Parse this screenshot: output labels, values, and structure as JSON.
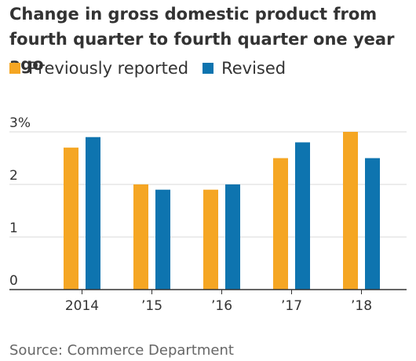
{
  "title": "Change in gross domestic product from fourth quarter to fourth quarter one year ago",
  "legend": [
    {
      "label": "Previously reported",
      "color": "#F5A623"
    },
    {
      "label": "Revised",
      "color": "#0E74AF"
    }
  ],
  "source": "Source: Commerce Department",
  "chart_data": {
    "type": "bar",
    "title": "Change in gross domestic product from fourth quarter to fourth quarter one year ago",
    "categories": [
      "2014",
      "’15",
      "’16",
      "’17",
      "’18"
    ],
    "series": [
      {
        "name": "Previously reported",
        "color": "#F5A623",
        "values": [
          2.7,
          2.0,
          1.9,
          2.5,
          3.0
        ]
      },
      {
        "name": "Revised",
        "color": "#0E74AF",
        "values": [
          2.9,
          1.9,
          2.0,
          2.8,
          2.5
        ]
      }
    ],
    "ylim": [
      0,
      3
    ],
    "yticks": [
      0,
      1,
      2,
      3
    ],
    "ytick_labels": [
      "0",
      "1",
      "2",
      "3%"
    ],
    "xlabel": "",
    "ylabel": "",
    "grid": true,
    "legend_position": "top-left"
  }
}
